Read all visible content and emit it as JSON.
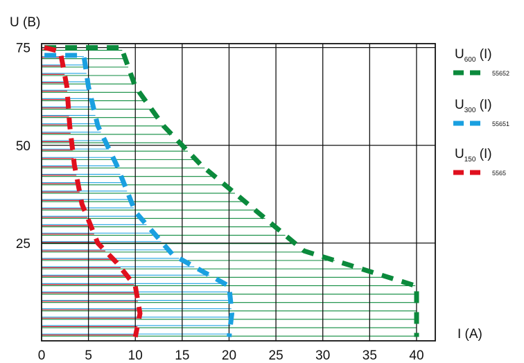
{
  "chart_data": {
    "type": "line",
    "ylabel": "U (B)",
    "xlabel": "I (A)",
    "xlim": [
      0,
      42
    ],
    "ylim": [
      0,
      76
    ],
    "x_ticks": [
      "0",
      "5",
      "10",
      "15",
      "20",
      "25",
      "30",
      "35",
      "40"
    ],
    "y_ticks": [
      "25",
      "50",
      "75"
    ],
    "grid": true,
    "legend_position": "right",
    "series": [
      {
        "name": "U600 (I)",
        "name_base": "U",
        "name_sub": "600",
        "name_suffix": " (I)",
        "code": "55652",
        "color": "#0b8a3c",
        "points": [
          [
            0.3,
            75
          ],
          [
            8.5,
            75
          ],
          [
            10,
            65
          ],
          [
            13,
            55
          ],
          [
            17,
            45
          ],
          [
            22,
            35
          ],
          [
            28,
            23
          ],
          [
            40,
            14
          ],
          [
            40,
            1
          ]
        ]
      },
      {
        "name": "U300 (I)",
        "name_base": "U",
        "name_sub": "300",
        "name_suffix": " (I)",
        "code": "55651",
        "color": "#1aa0e0",
        "points": [
          [
            0.3,
            73
          ],
          [
            4.5,
            73
          ],
          [
            5,
            65
          ],
          [
            6,
            55
          ],
          [
            8,
            45
          ],
          [
            10,
            33
          ],
          [
            14,
            22
          ],
          [
            20,
            14
          ],
          [
            20.3,
            7
          ],
          [
            20,
            1
          ]
        ]
      },
      {
        "name": "U150 (I)",
        "name_base": "U",
        "name_sub": "150",
        "name_suffix": " (I)",
        "code": "5565",
        "color": "#e0101e",
        "points": [
          [
            0.3,
            75
          ],
          [
            2,
            74
          ],
          [
            2.7,
            65
          ],
          [
            3,
            55
          ],
          [
            3.5,
            45
          ],
          [
            4.3,
            35
          ],
          [
            6,
            25
          ],
          [
            8,
            20
          ],
          [
            10,
            14
          ],
          [
            10.5,
            7
          ],
          [
            10,
            1
          ]
        ]
      }
    ]
  }
}
